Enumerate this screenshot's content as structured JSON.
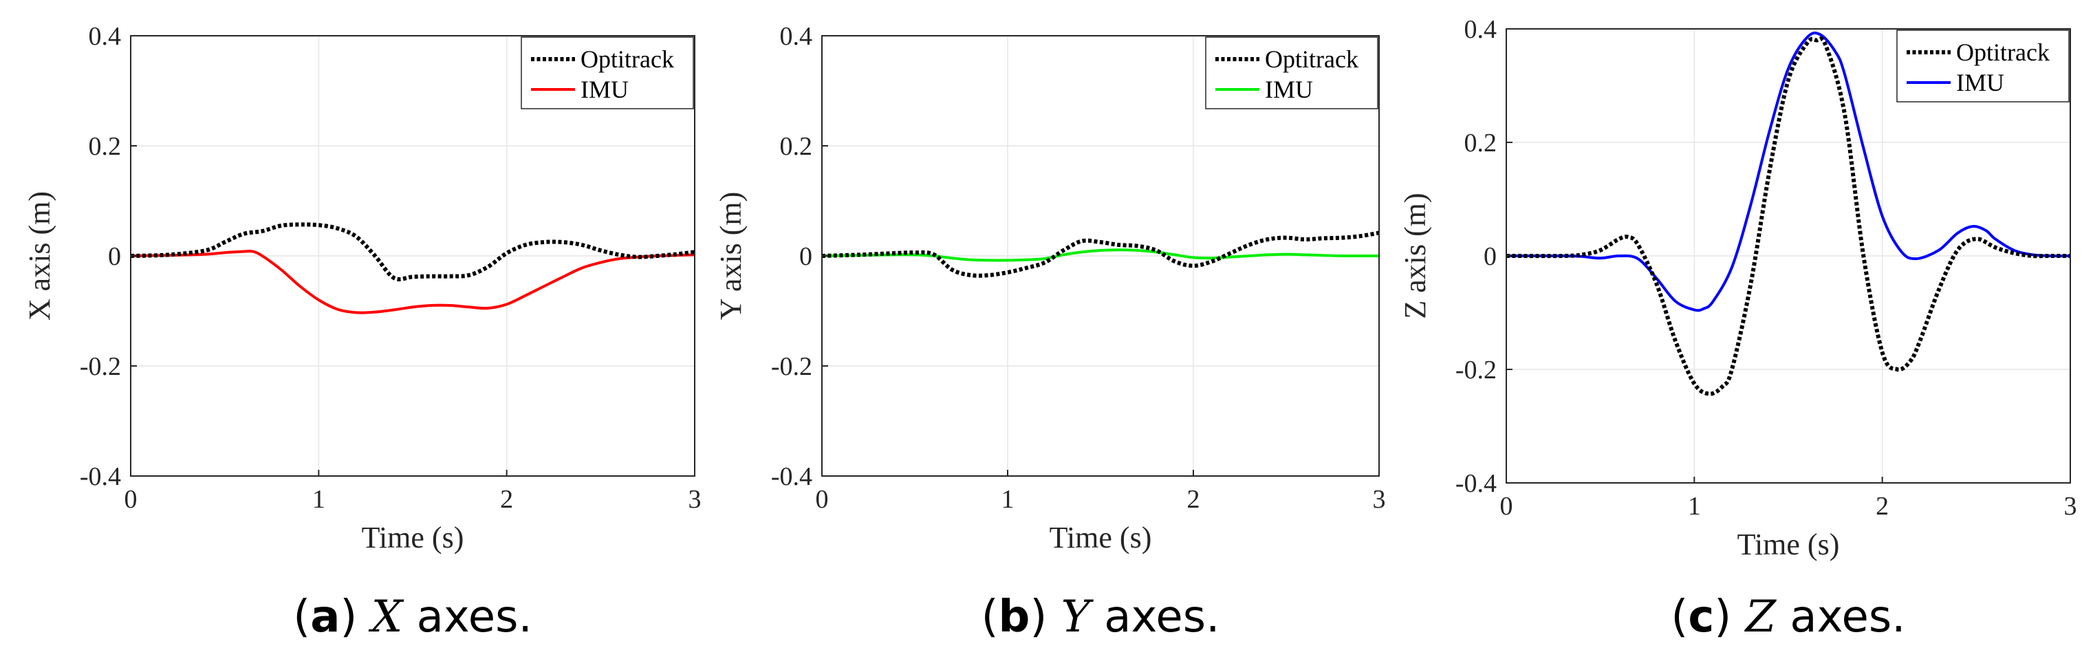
{
  "chart_data": [
    {
      "type": "line",
      "panel_letter": "a",
      "caption_axis": "X",
      "caption_rest": " axes.",
      "xlabel": "Time (s)",
      "ylabel": "X axis (m)",
      "xlim": [
        0,
        3
      ],
      "ylim": [
        -0.4,
        0.4
      ],
      "xticks": [
        "0",
        "1",
        "2",
        "3"
      ],
      "yticks": [
        "-0.4",
        "-0.2",
        "0",
        "0.2",
        "0.4"
      ],
      "grid": true,
      "legend_position": "top-right",
      "series": [
        {
          "name": "Optitrack",
          "color": "#000000",
          "style": "dotted",
          "x": [
            0,
            0.2,
            0.4,
            0.5,
            0.6,
            0.7,
            0.8,
            0.9,
            1.0,
            1.1,
            1.2,
            1.3,
            1.4,
            1.5,
            1.6,
            1.7,
            1.8,
            1.9,
            2.0,
            2.1,
            2.2,
            2.3,
            2.4,
            2.5,
            2.6,
            2.7,
            2.8,
            2.9,
            3.0
          ],
          "values": [
            0,
            0.002,
            0.01,
            0.025,
            0.04,
            0.045,
            0.055,
            0.057,
            0.056,
            0.05,
            0.035,
            0.0,
            -0.04,
            -0.038,
            -0.037,
            -0.037,
            -0.035,
            -0.02,
            0.005,
            0.02,
            0.025,
            0.025,
            0.02,
            0.01,
            0.002,
            -0.002,
            0.0,
            0.003,
            0.007
          ]
        },
        {
          "name": "IMU",
          "color": "#ff0000",
          "style": "solid",
          "x": [
            0,
            0.2,
            0.4,
            0.5,
            0.6,
            0.65,
            0.7,
            0.8,
            0.9,
            1.0,
            1.1,
            1.2,
            1.3,
            1.4,
            1.5,
            1.6,
            1.7,
            1.8,
            1.9,
            2.0,
            2.1,
            2.2,
            2.3,
            2.4,
            2.5,
            2.6,
            2.7,
            2.8,
            2.9,
            3.0
          ],
          "values": [
            0,
            0.001,
            0.003,
            0.006,
            0.008,
            0.008,
            0.0,
            -0.025,
            -0.055,
            -0.08,
            -0.097,
            -0.103,
            -0.102,
            -0.098,
            -0.093,
            -0.09,
            -0.09,
            -0.093,
            -0.095,
            -0.088,
            -0.072,
            -0.055,
            -0.038,
            -0.022,
            -0.012,
            -0.005,
            -0.002,
            0.0,
            0.001,
            0.002
          ]
        }
      ]
    },
    {
      "type": "line",
      "panel_letter": "b",
      "caption_axis": "Y",
      "caption_rest": " axes.",
      "xlabel": "Time (s)",
      "ylabel": "Y axis (m)",
      "xlim": [
        0,
        3
      ],
      "ylim": [
        -0.4,
        0.4
      ],
      "xticks": [
        "0",
        "1",
        "2",
        "3"
      ],
      "yticks": [
        "-0.4",
        "-0.2",
        "0",
        "0.2",
        "0.4"
      ],
      "grid": true,
      "legend_position": "top-right",
      "series": [
        {
          "name": "Optitrack",
          "color": "#000000",
          "style": "dotted",
          "x": [
            0,
            0.2,
            0.4,
            0.5,
            0.6,
            0.7,
            0.8,
            0.9,
            1.0,
            1.1,
            1.2,
            1.3,
            1.4,
            1.5,
            1.6,
            1.7,
            1.8,
            1.9,
            2.0,
            2.1,
            2.2,
            2.3,
            2.4,
            2.5,
            2.6,
            2.7,
            2.8,
            2.9,
            3.0
          ],
          "values": [
            0,
            0.002,
            0.005,
            0.006,
            0.003,
            -0.025,
            -0.035,
            -0.035,
            -0.03,
            -0.022,
            -0.012,
            0.01,
            0.027,
            0.025,
            0.02,
            0.018,
            0.01,
            -0.01,
            -0.018,
            -0.01,
            0.005,
            0.02,
            0.03,
            0.033,
            0.03,
            0.032,
            0.033,
            0.036,
            0.042
          ]
        },
        {
          "name": "IMU",
          "color": "#00ee00",
          "style": "solid",
          "x": [
            0,
            0.2,
            0.4,
            0.5,
            0.6,
            0.7,
            0.8,
            0.9,
            1.0,
            1.1,
            1.2,
            1.3,
            1.4,
            1.5,
            1.6,
            1.7,
            1.8,
            1.9,
            2.0,
            2.1,
            2.2,
            2.3,
            2.4,
            2.5,
            2.6,
            2.7,
            2.8,
            2.9,
            3.0
          ],
          "values": [
            0,
            0.001,
            0.002,
            0.002,
            0.0,
            -0.004,
            -0.007,
            -0.008,
            -0.008,
            -0.007,
            -0.005,
            0.002,
            0.007,
            0.01,
            0.011,
            0.01,
            0.007,
            0.002,
            -0.003,
            -0.004,
            -0.002,
            0.0,
            0.002,
            0.003,
            0.002,
            0.001,
            0.0,
            0.0,
            0.0
          ]
        }
      ]
    },
    {
      "type": "line",
      "panel_letter": "c",
      "caption_axis": "Z",
      "caption_rest": " axes.",
      "xlabel": "Time (s)",
      "ylabel": "Z axis (m)",
      "xlim": [
        0,
        3
      ],
      "ylim": [
        -0.4,
        0.4
      ],
      "xticks": [
        "0",
        "1",
        "2",
        "3"
      ],
      "yticks": [
        "-0.4",
        "-0.2",
        "0",
        "0.2",
        "0.4"
      ],
      "grid": true,
      "legend_position": "top-right",
      "series": [
        {
          "name": "Optitrack",
          "color": "#000000",
          "style": "dotted",
          "x": [
            0,
            0.3,
            0.4,
            0.5,
            0.6,
            0.65,
            0.7,
            0.8,
            0.9,
            1.0,
            1.08,
            1.15,
            1.2,
            1.3,
            1.4,
            1.5,
            1.6,
            1.65,
            1.7,
            1.8,
            1.9,
            2.0,
            2.08,
            2.15,
            2.2,
            2.3,
            2.4,
            2.5,
            2.6,
            2.7,
            2.8,
            2.9,
            3.0
          ],
          "values": [
            0,
            0.0,
            0.002,
            0.01,
            0.03,
            0.033,
            0.02,
            -0.05,
            -0.15,
            -0.225,
            -0.243,
            -0.23,
            -0.2,
            -0.05,
            0.15,
            0.31,
            0.375,
            0.38,
            0.37,
            0.25,
            0.0,
            -0.17,
            -0.2,
            -0.185,
            -0.15,
            -0.06,
            0.01,
            0.03,
            0.015,
            0.005,
            0.0,
            0.0,
            0.0
          ]
        },
        {
          "name": "IMU",
          "color": "#0000ff",
          "style": "solid",
          "x": [
            0,
            0.3,
            0.4,
            0.5,
            0.6,
            0.7,
            0.8,
            0.9,
            1.0,
            1.05,
            1.1,
            1.2,
            1.3,
            1.4,
            1.5,
            1.6,
            1.67,
            1.75,
            1.8,
            1.9,
            2.0,
            2.1,
            2.18,
            2.3,
            2.4,
            2.48,
            2.55,
            2.6,
            2.7,
            2.8,
            2.9,
            3.0
          ],
          "values": [
            0,
            0.0,
            -0.001,
            -0.004,
            0.0,
            -0.005,
            -0.04,
            -0.08,
            -0.095,
            -0.093,
            -0.08,
            -0.02,
            0.09,
            0.22,
            0.33,
            0.385,
            0.39,
            0.36,
            0.32,
            0.19,
            0.07,
            0.008,
            -0.005,
            0.01,
            0.04,
            0.052,
            0.045,
            0.03,
            0.01,
            0.002,
            0.0,
            0.0
          ]
        }
      ]
    }
  ]
}
